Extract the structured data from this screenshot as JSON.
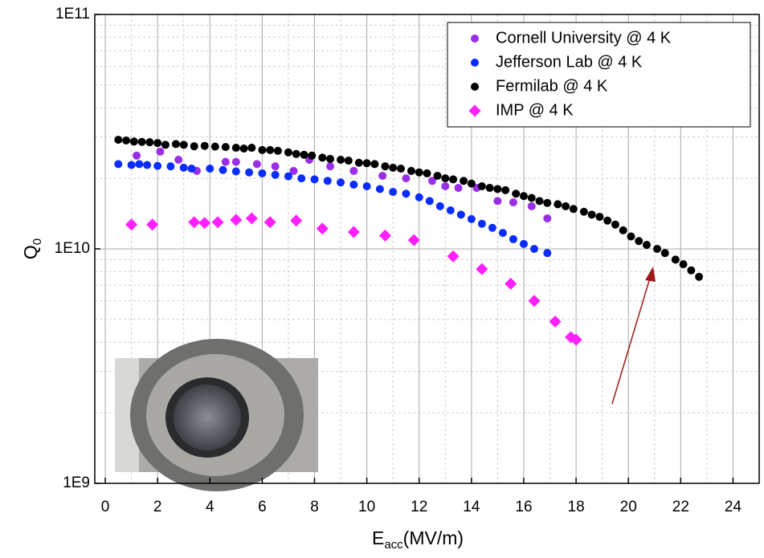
{
  "chart_data": {
    "type": "scatter",
    "x_label": {
      "main": "E",
      "sub": "acc",
      "rest": "(MV/m)"
    },
    "y_label": {
      "main": "Q",
      "sub": "0"
    },
    "xlim": [
      -0.4,
      25
    ],
    "xticks": [
      0,
      2,
      4,
      6,
      8,
      10,
      12,
      14,
      16,
      18,
      20,
      22,
      24
    ],
    "ylim": [
      1000000000.0,
      100000000000.0
    ],
    "yticks": [
      {
        "value": 1000000000.0,
        "label": "1E9"
      },
      {
        "value": 10000000000.0,
        "label": "1E10"
      },
      {
        "value": 100000000000.0,
        "label": "1E11"
      }
    ],
    "log_y": true,
    "grid": true,
    "legend": "top-right",
    "series": [
      {
        "name": "Cornell University @ 4 K",
        "color": "#9a2ee6",
        "marker": "circle",
        "x": [
          1.2,
          2.1,
          2.8,
          3.5,
          4.6,
          5.0,
          5.8,
          6.5,
          7.2,
          7.8,
          8.6,
          9.5,
          10.6,
          11.5,
          12.5,
          13.0,
          13.5,
          14.2,
          15.0,
          15.6,
          16.3,
          16.9
        ],
        "values": [
          25000000000.0,
          26000000000.0,
          24000000000.0,
          21500000000.0,
          23500000000.0,
          23500000000.0,
          23000000000.0,
          22500000000.0,
          21500000000.0,
          24000000000.0,
          22500000000.0,
          21500000000.0,
          20500000000.0,
          20000000000.0,
          19500000000.0,
          18500000000.0,
          18200000000.0,
          18200000000.0,
          16000000000.0,
          15800000000.0,
          15200000000.0,
          13500000000.0
        ]
      },
      {
        "name": "Jefferson Lab @ 4 K",
        "color": "#0a2cff",
        "marker": "circle",
        "x": [
          0.5,
          1.0,
          1.3,
          1.6,
          2.0,
          2.5,
          3.0,
          3.3,
          4.0,
          4.5,
          5.0,
          5.5,
          6.0,
          6.5,
          7.0,
          7.5,
          8.0,
          8.5,
          9.0,
          9.5,
          10.0,
          10.5,
          11.0,
          11.5,
          12.0,
          12.4,
          12.8,
          13.2,
          13.6,
          14.0,
          14.4,
          14.8,
          15.2,
          15.6,
          16.0,
          16.4,
          16.9
        ],
        "values": [
          23000000000.0,
          22800000000.0,
          23000000000.0,
          22800000000.0,
          22600000000.0,
          22500000000.0,
          22200000000.0,
          22000000000.0,
          22000000000.0,
          21700000000.0,
          21400000000.0,
          21200000000.0,
          21000000000.0,
          20700000000.0,
          20400000000.0,
          20000000000.0,
          19800000000.0,
          19500000000.0,
          19200000000.0,
          18800000000.0,
          18500000000.0,
          18000000000.0,
          17500000000.0,
          17200000000.0,
          16600000000.0,
          16000000000.0,
          15200000000.0,
          14600000000.0,
          14000000000.0,
          13400000000.0,
          12800000000.0,
          12300000000.0,
          11700000000.0,
          11000000000.0,
          10500000000.0,
          10000000000.0,
          9600000000.0
        ]
      },
      {
        "name": "Fermilab @ 4 K",
        "color": "#000000",
        "marker": "circle",
        "x": [
          0.5,
          0.8,
          1.1,
          1.4,
          1.7,
          2.0,
          2.3,
          2.7,
          3.0,
          3.4,
          3.8,
          4.2,
          4.6,
          5.0,
          5.3,
          5.6,
          6.0,
          6.3,
          6.6,
          7.0,
          7.3,
          7.6,
          7.9,
          8.3,
          8.6,
          9.0,
          9.3,
          9.7,
          10.0,
          10.3,
          10.7,
          11.0,
          11.3,
          11.7,
          12.0,
          12.3,
          12.7,
          13.0,
          13.3,
          13.7,
          14.0,
          14.4,
          14.7,
          15.0,
          15.3,
          15.7,
          16.0,
          16.3,
          16.6,
          16.9,
          17.3,
          17.6,
          17.9,
          18.3,
          18.6,
          18.9,
          19.2,
          19.5,
          19.8,
          20.1,
          20.4,
          20.7,
          21.1,
          21.4,
          21.8,
          22.1,
          22.4,
          22.7
        ],
        "values": [
          29200000000.0,
          29000000000.0,
          28700000000.0,
          28600000000.0,
          28500000000.0,
          28300000000.0,
          27800000000.0,
          28000000000.0,
          27800000000.0,
          27400000000.0,
          27500000000.0,
          27300000000.0,
          27200000000.0,
          27000000000.0,
          26800000000.0,
          27000000000.0,
          26400000000.0,
          26400000000.0,
          26200000000.0,
          25800000000.0,
          25400000000.0,
          25200000000.0,
          25000000000.0,
          24500000000.0,
          24200000000.0,
          24000000000.0,
          23800000000.0,
          23300000000.0,
          23200000000.0,
          23000000000.0,
          22500000000.0,
          22200000000.0,
          22000000000.0,
          21500000000.0,
          21200000000.0,
          21000000000.0,
          20500000000.0,
          20000000000.0,
          19800000000.0,
          19500000000.0,
          19000000000.0,
          18500000000.0,
          18200000000.0,
          18000000000.0,
          17800000000.0,
          17200000000.0,
          16800000000.0,
          16500000000.0,
          16000000000.0,
          15700000000.0,
          15500000000.0,
          15200000000.0,
          14800000000.0,
          14400000000.0,
          14000000000.0,
          13700000000.0,
          13200000000.0,
          12700000000.0,
          12000000000.0,
          11300000000.0,
          10800000000.0,
          10400000000.0,
          10000000000.0,
          9600000000.0,
          9000000000.0,
          8600000000.0,
          8100000000.0,
          7600000000.0
        ]
      },
      {
        "name": "IMP @ 4 K",
        "color": "#ff1fff",
        "marker": "diamond",
        "x": [
          1.0,
          1.8,
          3.4,
          3.8,
          4.3,
          5.0,
          5.6,
          6.3,
          7.3,
          8.3,
          9.5,
          10.7,
          11.8,
          13.3,
          14.4,
          15.5,
          16.4,
          17.2,
          17.8,
          18.0
        ],
        "values": [
          12700000000.0,
          12700000000.0,
          13000000000.0,
          12900000000.0,
          13000000000.0,
          13300000000.0,
          13500000000.0,
          13000000000.0,
          13200000000.0,
          12200000000.0,
          11800000000.0,
          11400000000.0,
          10900000000.0,
          9300000000.0,
          8200000000.0,
          7100000000.0,
          6000000000.0,
          4900000000.0,
          4200000000.0,
          4100000000.0
        ]
      }
    ]
  }
}
